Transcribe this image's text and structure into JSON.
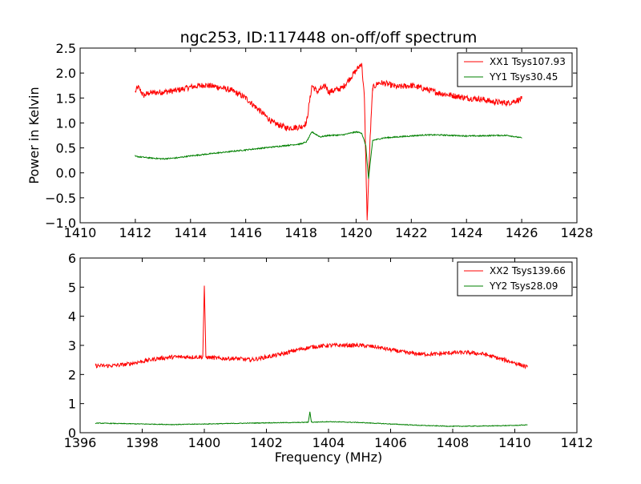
{
  "figure": {
    "title": "ngc253, ID:117448 on-off/off spectrum"
  },
  "chart_data": [
    {
      "type": "line",
      "title": "ngc253, ID:117448 on-off/off spectrum",
      "xlabel": "",
      "ylabel": "Power in Kelvin",
      "xlim": [
        1410,
        1428
      ],
      "ylim": [
        -1.0,
        2.5
      ],
      "x_ticks": [
        "1410",
        "1412",
        "1414",
        "1416",
        "1418",
        "1420",
        "1422",
        "1424",
        "1426",
        "1428"
      ],
      "y_ticks": [
        "−1.0",
        "−0.5",
        "0.0",
        "0.5",
        "1.0",
        "1.5",
        "2.0",
        "2.5"
      ],
      "legend_position": "top-right",
      "grid": false,
      "series": [
        {
          "name": "XX1 Tsys107.93",
          "color": "#ff0000",
          "x": [
            1412.0,
            1412.1,
            1412.3,
            1412.5,
            1413.0,
            1413.5,
            1414.0,
            1414.5,
            1415.0,
            1415.5,
            1416.0,
            1416.5,
            1417.0,
            1417.5,
            1418.0,
            1418.2,
            1418.4,
            1418.6,
            1418.7,
            1418.8,
            1418.9,
            1419.0,
            1419.5,
            1420.0,
            1420.2,
            1420.3,
            1420.4,
            1420.5,
            1420.6,
            1420.8,
            1421.0,
            1421.5,
            1422.0,
            1422.5,
            1423.0,
            1423.5,
            1424.0,
            1424.5,
            1425.0,
            1425.5,
            1426.0
          ],
          "values": [
            1.62,
            1.72,
            1.55,
            1.6,
            1.62,
            1.65,
            1.72,
            1.76,
            1.72,
            1.65,
            1.5,
            1.25,
            1.0,
            0.9,
            0.92,
            1.0,
            1.75,
            1.62,
            1.68,
            1.7,
            1.75,
            1.62,
            1.7,
            2.05,
            2.2,
            1.5,
            -0.95,
            0.6,
            1.7,
            1.8,
            1.8,
            1.72,
            1.75,
            1.68,
            1.6,
            1.55,
            1.5,
            1.48,
            1.42,
            1.4,
            1.48
          ]
        },
        {
          "name": "YY1 Tsys30.45",
          "color": "#008000",
          "x": [
            1412.0,
            1412.5,
            1413.0,
            1413.5,
            1414.0,
            1414.5,
            1415.0,
            1415.5,
            1416.0,
            1416.5,
            1417.0,
            1417.5,
            1418.0,
            1418.2,
            1418.4,
            1418.7,
            1419.0,
            1419.5,
            1420.0,
            1420.2,
            1420.35,
            1420.45,
            1420.6,
            1421.0,
            1421.5,
            1422.0,
            1422.5,
            1423.0,
            1423.5,
            1424.0,
            1424.5,
            1425.0,
            1425.5,
            1426.0
          ],
          "values": [
            0.33,
            0.3,
            0.28,
            0.3,
            0.34,
            0.37,
            0.4,
            0.43,
            0.46,
            0.49,
            0.52,
            0.55,
            0.58,
            0.62,
            0.82,
            0.72,
            0.75,
            0.76,
            0.82,
            0.8,
            0.55,
            -0.12,
            0.65,
            0.7,
            0.72,
            0.74,
            0.76,
            0.76,
            0.75,
            0.74,
            0.74,
            0.75,
            0.75,
            0.7
          ]
        }
      ]
    },
    {
      "type": "line",
      "title": "",
      "xlabel": "Frequency (MHz)",
      "ylabel": "",
      "xlim": [
        1396,
        1412
      ],
      "ylim": [
        0,
        6
      ],
      "x_ticks": [
        "1396",
        "1398",
        "1400",
        "1402",
        "1404",
        "1406",
        "1408",
        "1410",
        "1412"
      ],
      "y_ticks": [
        "0",
        "1",
        "2",
        "3",
        "4",
        "5",
        "6"
      ],
      "legend_position": "top-right",
      "grid": false,
      "series": [
        {
          "name": "XX2 Tsys139.66",
          "color": "#ff0000",
          "x": [
            1396.5,
            1397.0,
            1397.5,
            1398.0,
            1398.5,
            1399.0,
            1399.5,
            1399.95,
            1400.0,
            1400.05,
            1400.5,
            1401.0,
            1401.5,
            1402.0,
            1402.5,
            1403.0,
            1403.5,
            1404.0,
            1404.5,
            1405.0,
            1405.5,
            1406.0,
            1406.5,
            1407.0,
            1407.5,
            1408.0,
            1408.5,
            1409.0,
            1409.5,
            1410.0,
            1410.4
          ],
          "values": [
            2.3,
            2.3,
            2.35,
            2.45,
            2.55,
            2.6,
            2.6,
            2.6,
            5.05,
            2.6,
            2.55,
            2.55,
            2.5,
            2.6,
            2.7,
            2.85,
            2.95,
            3.0,
            3.0,
            3.0,
            2.95,
            2.85,
            2.75,
            2.7,
            2.7,
            2.75,
            2.75,
            2.7,
            2.55,
            2.4,
            2.25
          ]
        },
        {
          "name": "YY2 Tsys28.09",
          "color": "#008000",
          "x": [
            1396.5,
            1397.0,
            1398.0,
            1399.0,
            1400.0,
            1401.0,
            1402.0,
            1403.0,
            1403.35,
            1403.4,
            1403.45,
            1404.0,
            1405.0,
            1406.0,
            1407.0,
            1408.0,
            1409.0,
            1410.0,
            1410.4
          ],
          "values": [
            0.33,
            0.32,
            0.3,
            0.28,
            0.3,
            0.32,
            0.34,
            0.35,
            0.36,
            0.72,
            0.36,
            0.38,
            0.35,
            0.3,
            0.25,
            0.22,
            0.23,
            0.25,
            0.27
          ]
        }
      ]
    }
  ]
}
